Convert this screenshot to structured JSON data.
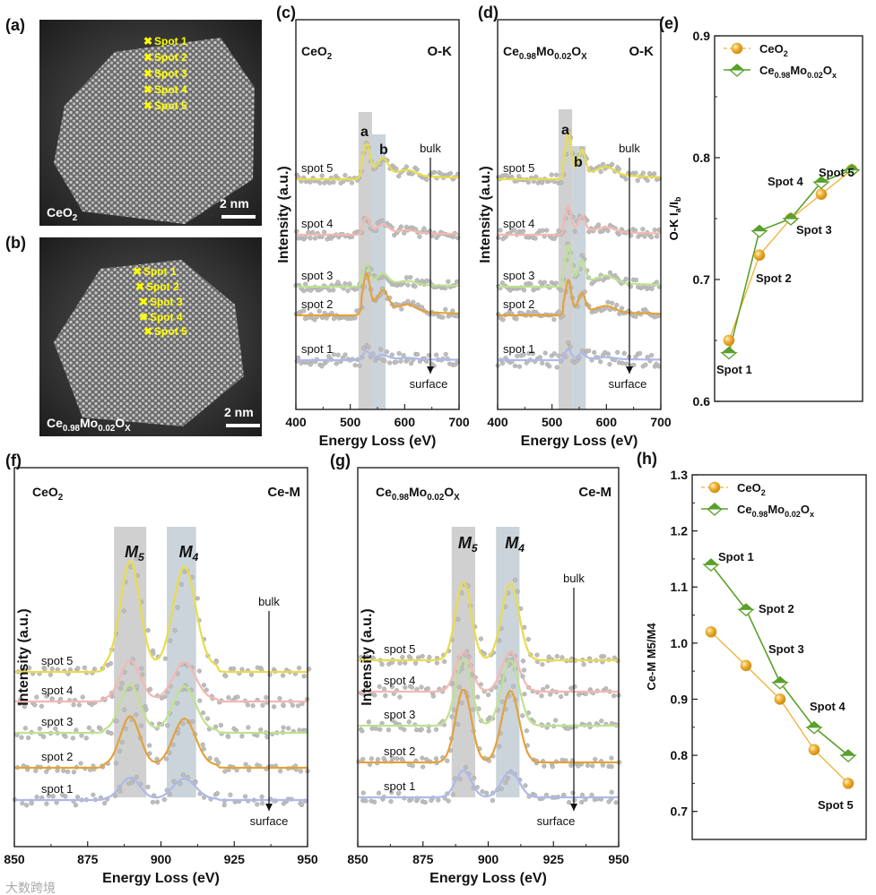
{
  "colors": {
    "ceo2": "#f0b030",
    "doped": "#5aa02c",
    "spot5": "#e8dc4a",
    "spot4": "#f4b8b2",
    "spot3": "#bfe28e",
    "spot2": "#e3a23a",
    "spot1": "#aeb8ea",
    "band_a": "#c8c8c8",
    "band_b": "#c2ccd4",
    "marker_yellow": "#ffff00"
  },
  "formulas": {
    "ceo2": [
      {
        "t": "CeO"
      },
      {
        "t": "2",
        "sub": true
      }
    ],
    "doped": [
      {
        "t": "Ce"
      },
      {
        "t": "0.98",
        "sub": true
      },
      {
        "t": "Mo"
      },
      {
        "t": "0.02",
        "sub": true
      },
      {
        "t": "O"
      },
      {
        "t": "X",
        "sub": true
      }
    ],
    "doped_legend": [
      {
        "t": "Ce"
      },
      {
        "t": "0.98",
        "sub": true
      },
      {
        "t": "Mo"
      },
      {
        "t": "0.02",
        "sub": true
      },
      {
        "t": "O"
      },
      {
        "t": "x",
        "sub": true
      }
    ]
  },
  "panels": {
    "a": {
      "label": "(a)",
      "scale": "2 nm",
      "spots": [
        "Spot 1",
        "Spot 2",
        "Spot 3",
        "Spot 4",
        "Spot 5"
      ]
    },
    "b": {
      "label": "(b)",
      "scale": "2 nm",
      "spots": [
        "Spot 1",
        "Spot 2",
        "Spot 3",
        "Spot 4",
        "Spot 5"
      ]
    },
    "c": {
      "label": "(c)",
      "edge": "O-K",
      "ylabel": "Intensity (a.u.)",
      "xlabel": "Energy Loss (eV)",
      "xticks": [
        "400",
        "500",
        "600",
        "700"
      ],
      "peak_labels": [
        "a",
        "b"
      ],
      "bulk": "bulk",
      "surface": "surface",
      "spots": [
        "spot 5",
        "spot 4",
        "spot 3",
        "spot 2",
        "spot 1"
      ]
    },
    "d": {
      "label": "(d)",
      "edge": "O-K",
      "ylabel": "Intensity (a.u.)",
      "xlabel": "Energy Loss (eV)",
      "xticks": [
        "400",
        "500",
        "600",
        "700"
      ],
      "peak_labels": [
        "a",
        "b"
      ],
      "bulk": "bulk",
      "surface": "surface",
      "spots": [
        "spot 5",
        "spot 4",
        "spot 3",
        "spot 2",
        "spot 1"
      ]
    },
    "e": {
      "label": "(e)"
    },
    "f": {
      "label": "(f)",
      "edge": "Ce-M",
      "ylabel": "Intensity (a.u.)",
      "xlabel": "Energy Loss (eV)",
      "xticks": [
        "850",
        "875",
        "900",
        "925",
        "950"
      ],
      "peak_labels": [
        "M",
        "5",
        "M",
        "4"
      ],
      "bulk": "bulk",
      "surface": "surface",
      "spots": [
        "spot 5",
        "spot 4",
        "spot 3",
        "spot 2",
        "spot 1"
      ]
    },
    "g": {
      "label": "(g)",
      "edge": "Ce-M",
      "ylabel": "Intensity (a.u.)",
      "xlabel": "Energy Loss (eV)",
      "xticks": [
        "850",
        "875",
        "900",
        "925",
        "950"
      ],
      "peak_labels": [
        "M",
        "5",
        "M",
        "4"
      ],
      "bulk": "bulk",
      "surface": "surface",
      "spots": [
        "spot 5",
        "spot 4",
        "spot 3",
        "spot 2",
        "spot 1"
      ]
    },
    "h": {
      "label": "(h)"
    }
  },
  "chart_data": [
    {
      "panel": "c",
      "type": "line",
      "title": "CeO2 O-K",
      "xlabel": "Energy Loss (eV)",
      "ylabel": "Intensity (a.u.)",
      "xlim": [
        400,
        700
      ],
      "peaks_eV": {
        "a": 530,
        "b": 560
      },
      "series": [
        "spot 5",
        "spot 4",
        "spot 3",
        "spot 2",
        "spot 1"
      ]
    },
    {
      "panel": "d",
      "type": "line",
      "title": "Ce0.98Mo0.02OX O-K",
      "xlabel": "Energy Loss (eV)",
      "ylabel": "Intensity (a.u.)",
      "xlim": [
        400,
        700
      ],
      "peaks_eV": {
        "a": 530,
        "b": 555
      },
      "series": [
        "spot 5",
        "spot 4",
        "spot 3",
        "spot 2",
        "spot 1"
      ]
    },
    {
      "panel": "e",
      "type": "line",
      "ylabel": "O-K Ia/Ib",
      "ylim": [
        0.6,
        0.9
      ],
      "yticks": [
        "0.6",
        "0.7",
        "0.8",
        "0.9"
      ],
      "categories": [
        "Spot 1",
        "Spot 2",
        "Spot 3",
        "Spot 4",
        "Spot 5"
      ],
      "legend": "top-left",
      "series": [
        {
          "name": "CeO2",
          "values": [
            0.65,
            0.72,
            0.75,
            0.77,
            0.79
          ]
        },
        {
          "name": "Ce0.98Mo0.02Ox",
          "values": [
            0.64,
            0.74,
            0.75,
            0.78,
            0.79
          ]
        }
      ],
      "ylabel_parts": [
        "O-K I",
        "a",
        "/I",
        "b"
      ]
    },
    {
      "panel": "f",
      "type": "line",
      "title": "CeO2 Ce-M",
      "xlabel": "Energy Loss (eV)",
      "ylabel": "Intensity (a.u.)",
      "xlim": [
        850,
        950
      ],
      "peaks_eV": {
        "M5": 889,
        "M4": 907
      },
      "series": [
        "spot 5",
        "spot 4",
        "spot 3",
        "spot 2",
        "spot 1"
      ]
    },
    {
      "panel": "g",
      "type": "line",
      "title": "Ce0.98Mo0.02OX Ce-M",
      "xlabel": "Energy Loss (eV)",
      "ylabel": "Intensity (a.u.)",
      "xlim": [
        850,
        950
      ],
      "peaks_eV": {
        "M5": 890,
        "M4": 908
      },
      "series": [
        "spot 5",
        "spot 4",
        "spot 3",
        "spot 2",
        "spot 1"
      ]
    },
    {
      "panel": "h",
      "type": "line",
      "ylabel": "Ce-M M5/M4",
      "ylim": [
        0.65,
        1.3
      ],
      "yticks": [
        "0.7",
        "0.8",
        "0.9",
        "1.0",
        "1.1",
        "1.2",
        "1.3"
      ],
      "categories": [
        "Spot 1",
        "Spot 2",
        "Spot 3",
        "Spot 4",
        "Spot 5"
      ],
      "legend": "top-left",
      "series": [
        {
          "name": "CeO2",
          "values": [
            1.02,
            0.96,
            0.9,
            0.81,
            0.75
          ]
        },
        {
          "name": "Ce0.98Mo0.02Ox",
          "values": [
            1.14,
            1.06,
            0.93,
            0.85,
            0.8
          ]
        }
      ],
      "ylabel_parts": [
        "Ce-M ",
        "M",
        "5",
        "/",
        "M",
        "4"
      ]
    }
  ],
  "watermark": "大数跨境"
}
